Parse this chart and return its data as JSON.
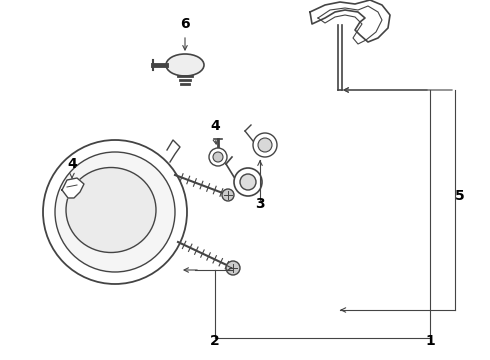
{
  "background_color": "#ffffff",
  "line_color": "#444444",
  "label_color": "#000000",
  "figsize": [
    4.9,
    3.6
  ],
  "dpi": 100,
  "xlim": [
    0,
    490
  ],
  "ylim": [
    0,
    360
  ]
}
